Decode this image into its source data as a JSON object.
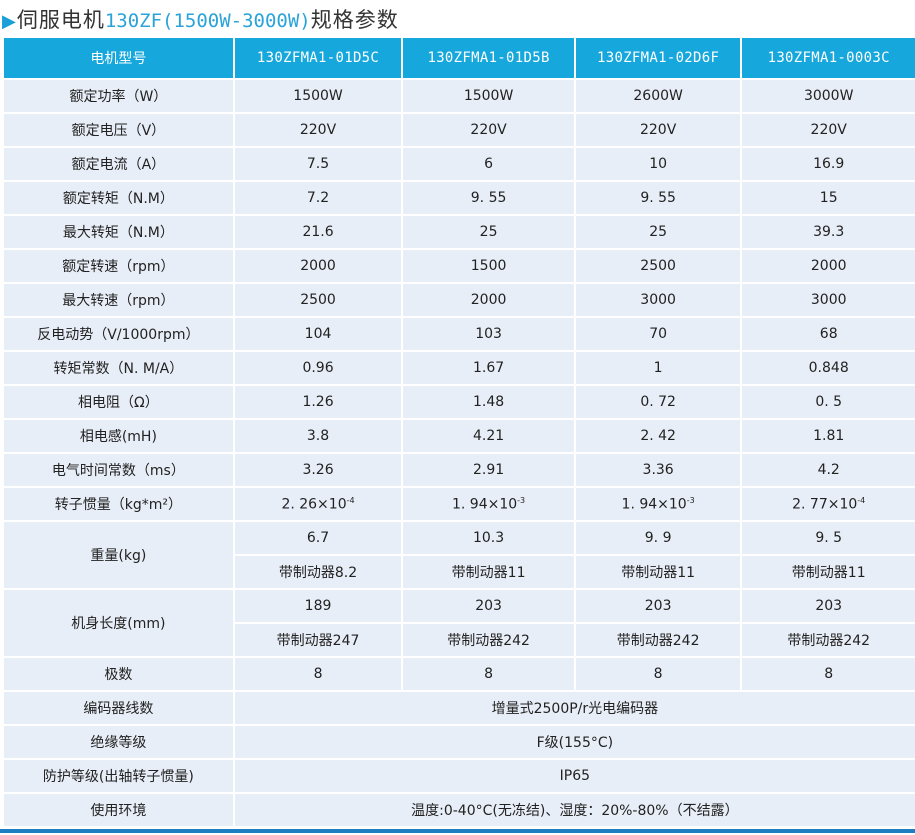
{
  "title": {
    "prefix": "伺服电机",
    "model": "130ZF(1500W-3000W)",
    "suffix": "规格参数"
  },
  "colors": {
    "header": "#16a7dc",
    "cell": "#e8eef7",
    "title_accent": "#2aa3d8",
    "bottom_bar": "#1d7fc2"
  },
  "header": [
    "电机型号",
    "130ZFMA1-01D5C",
    "130ZFMA1-01D5B",
    "130ZFMA1-02D6F",
    "130ZFMA1-0003C"
  ],
  "rows": [
    {
      "label": "额定功率（W）",
      "values": [
        "1500W",
        "1500W",
        "2600W",
        "3000W"
      ]
    },
    {
      "label": "额定电压（V）",
      "values": [
        "220V",
        "220V",
        "220V",
        "220V"
      ]
    },
    {
      "label": "额定电流（A）",
      "values": [
        "7.5",
        "6",
        "10",
        "16.9"
      ]
    },
    {
      "label": "额定转矩（N.M）",
      "values": [
        "7.2",
        "9. 55",
        "9. 55",
        "15"
      ]
    },
    {
      "label": "最大转矩（N.M）",
      "values": [
        "21.6",
        "25",
        "25",
        "39.3"
      ]
    },
    {
      "label": "额定转速（rpm）",
      "values": [
        "2000",
        "1500",
        "2500",
        "2000"
      ]
    },
    {
      "label": "最大转速（rpm）",
      "values": [
        "2500",
        "2000",
        "3000",
        "3000"
      ]
    },
    {
      "label": "反电动势（V/1000rpm）",
      "values": [
        "104",
        "103",
        "70",
        "68"
      ]
    },
    {
      "label": "转矩常数（N. M/A）",
      "values": [
        "0.96",
        "1.67",
        "1",
        "0.848"
      ]
    },
    {
      "label": "相电阻（Ω）",
      "values": [
        "1.26",
        "1.48",
        "0. 72",
        "0. 5"
      ]
    },
    {
      "label": "相电感(mH)",
      "values": [
        "3.8",
        "4.21",
        "2. 42",
        "1.81"
      ]
    },
    {
      "label": "电气时间常数（ms）",
      "values": [
        "3.26",
        "2.91",
        "3.36",
        "4.2"
      ]
    }
  ],
  "inertia": {
    "label": "转子惯量（kg*m²）",
    "values": [
      {
        "base": "2. 26×10",
        "exp": "-4"
      },
      {
        "base": "1. 94×10",
        "exp": "-3"
      },
      {
        "base": "1. 94×10",
        "exp": "-3"
      },
      {
        "base": "2. 77×10",
        "exp": "-4"
      }
    ]
  },
  "weight": {
    "label": "重量(kg)",
    "values": [
      "6.7",
      "10.3",
      "9. 9",
      "9. 5"
    ],
    "brake": [
      "带制动器8.2",
      "带制动器11",
      "带制动器11",
      "带制动器11"
    ]
  },
  "length": {
    "label": "机身长度(mm)",
    "values": [
      "189",
      "203",
      "203",
      "203"
    ],
    "brake": [
      "带制动器247",
      "带制动器242",
      "带制动器242",
      "带制动器242"
    ]
  },
  "poles": {
    "label": "极数",
    "values": [
      "8",
      "8",
      "8",
      "8"
    ]
  },
  "merged": [
    {
      "label": "编码器线数",
      "value": "增量式2500P/r光电编码器"
    },
    {
      "label": "绝缘等级",
      "value": "F级(155°C)"
    },
    {
      "label": "防护等级(出轴转子惯量)",
      "value": "IP65"
    },
    {
      "label": "使用环境",
      "value": "温度:0-40°C(无冻结)、湿度：20%-80%（不结露）"
    }
  ]
}
